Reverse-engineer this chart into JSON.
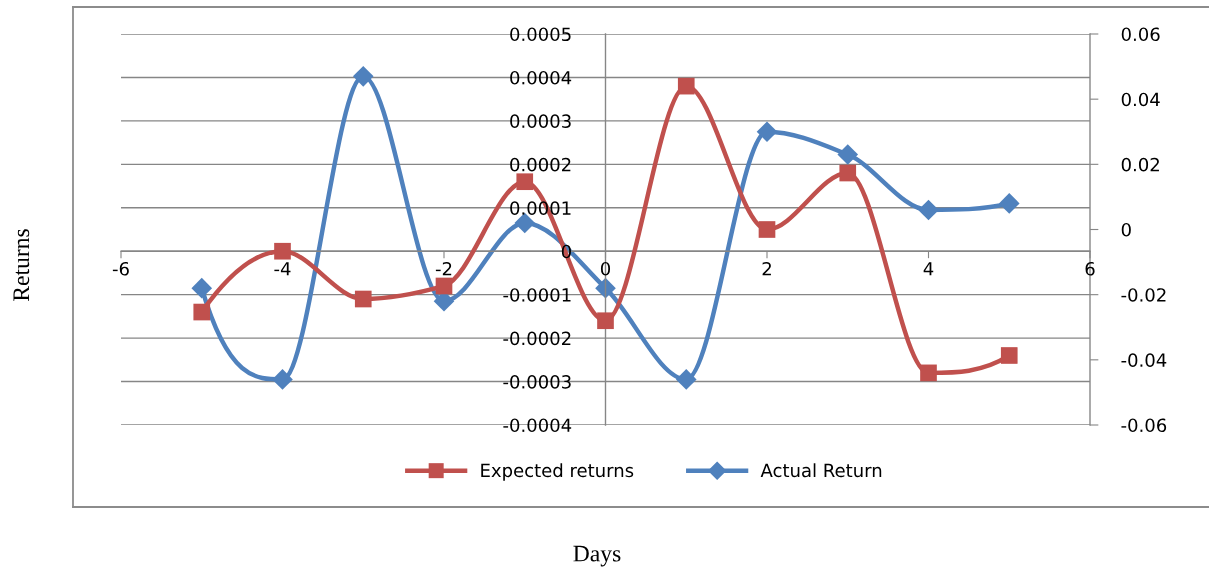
{
  "chart_data": {
    "type": "line",
    "xlabel": "Days",
    "ylabel": "Returns",
    "x": [
      -5,
      -4,
      -3,
      -2,
      -1,
      0,
      1,
      2,
      3,
      4,
      5
    ],
    "series": [
      {
        "name": "Expected returns",
        "color": "#c0504d",
        "marker": "square",
        "values": [
          -0.00014,
          0.0,
          -0.00011,
          -8e-05,
          0.00016,
          -0.00016,
          0.00038,
          5e-05,
          0.00018,
          -0.00028,
          -0.00024
        ]
      },
      {
        "name": "Actual Return",
        "color": "#4f81bd",
        "marker": "diamond",
        "axis": "y2",
        "values": [
          -0.018,
          -0.046,
          0.047,
          -0.022,
          0.002,
          -0.018,
          -0.046,
          0.03,
          0.023,
          0.006,
          0.008
        ]
      }
    ],
    "xlim": [
      -6,
      6
    ],
    "xticks": [
      -6,
      -4,
      -2,
      0,
      2,
      4,
      6
    ],
    "ylim": [
      -0.0004,
      0.0005
    ],
    "yticks": [
      -0.0004,
      -0.0003,
      -0.0002,
      -0.0001,
      0,
      0.0001,
      0.0002,
      0.0003,
      0.0004,
      0.0005
    ],
    "y2lim": [
      -0.06,
      0.06
    ],
    "y2ticks": [
      -0.06,
      -0.04,
      -0.02,
      0,
      0.02,
      0.04,
      0.06
    ],
    "grid": "y",
    "legend": "bottom",
    "line_style": "solid"
  }
}
